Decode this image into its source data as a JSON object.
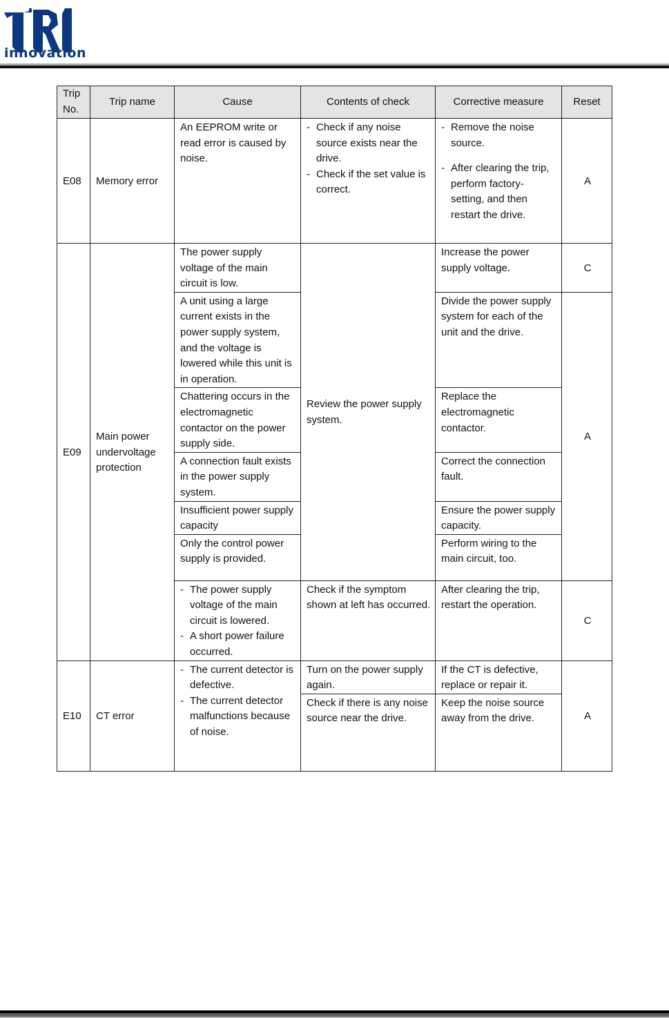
{
  "logo": {
    "letters": "TRI",
    "word": "innovation",
    "color": "#0d3880"
  },
  "headers": [
    "Trip No.",
    "Trip name",
    "Cause",
    "Contents of check",
    "Corrective measure",
    "Reset"
  ],
  "e08": {
    "no": "E08",
    "name": "Memory error",
    "cause": "An EEPROM write or read error is caused by noise.",
    "check": [
      "Check if any noise source exists near the drive.",
      "Check if the set value is correct."
    ],
    "measure": [
      "Remove the noise source.",
      "After clearing the trip, perform factory-setting, and then restart the drive."
    ],
    "reset": "A"
  },
  "e09": {
    "no": "E09",
    "name": "Main power undervoltage protection",
    "causes": [
      "The power supply voltage of the main circuit is low.",
      "A unit using a large current exists in the power supply system, and the voltage is lowered while this unit is in operation.",
      "Chattering occurs in the electromagnetic contactor on the power supply side.",
      "A connection fault exists in the power supply system.",
      "Insufficient power supply capacity",
      "Only the control power supply is provided."
    ],
    "cause_last": [
      "The power supply voltage of the main circuit is lowered.",
      "A short power failure occurred."
    ],
    "check": "Review the power supply system.",
    "check_last": "Check if the symptom shown at left has occurred.",
    "measures": [
      "Increase the power supply voltage.",
      "Divide the power supply system for each of the unit and the drive.",
      "Replace the electromagnetic contactor.",
      "Correct the connection fault.",
      "Ensure the power supply capacity.",
      "Perform wiring to the main circuit, too.",
      "After clearing the trip, restart the operation."
    ],
    "reset": [
      "C",
      "A",
      "C"
    ]
  },
  "e10": {
    "no": "E10",
    "name": "CT error",
    "cause": [
      "The current detector is defective.",
      "The current detector malfunctions because of noise."
    ],
    "checks": [
      "Turn on the power supply again.",
      "Check if there is any noise source near the drive."
    ],
    "measures": [
      "If the CT is defective, replace or repair it.",
      "Keep the noise source away from the drive."
    ],
    "reset": "A"
  }
}
